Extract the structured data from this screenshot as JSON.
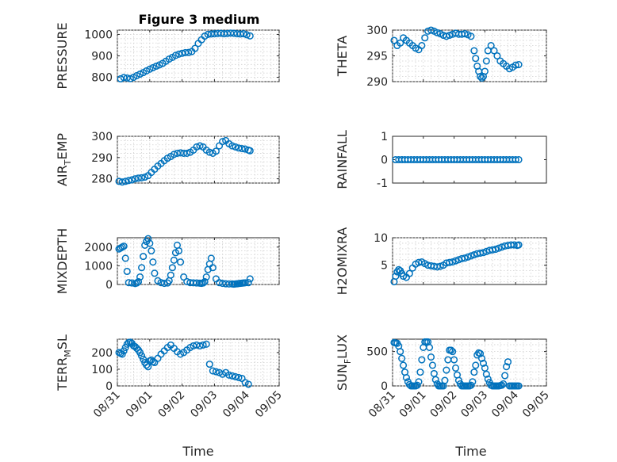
{
  "figure_title": "Figure 3 medium",
  "marker_color": "#0072BD",
  "chart_data": [
    {
      "type": "scatter",
      "ylabel": "PRESSURE",
      "ylabel_sub": "",
      "ylim": [
        780,
        1020
      ],
      "yticks": [
        800,
        900,
        1000
      ],
      "grid": true,
      "show_xticklabels": false,
      "series": [
        {
          "x": [
            0.1,
            0.2,
            0.3,
            0.4,
            0.5,
            0.6,
            0.7,
            0.8,
            0.9,
            1.0,
            1.1,
            1.2,
            1.3,
            1.4,
            1.5,
            1.6,
            1.7,
            1.8,
            1.9,
            2.0,
            2.1,
            2.2,
            2.3,
            2.4,
            2.5,
            2.6,
            2.7,
            2.8,
            2.9,
            3.0,
            3.1,
            3.2,
            3.3,
            3.4,
            3.5,
            3.6,
            3.7,
            3.8,
            3.9,
            4.0,
            4.1
          ],
          "y": [
            793,
            799,
            797,
            794,
            800,
            808,
            815,
            822,
            830,
            838,
            845,
            852,
            858,
            865,
            875,
            885,
            893,
            902,
            908,
            912,
            915,
            916,
            920,
            935,
            958,
            975,
            992,
            1000,
            1002,
            1003,
            1004,
            1005,
            1003,
            1004,
            1006,
            1005,
            1003,
            1002,
            1003,
            998,
            993
          ]
        }
      ]
    },
    {
      "type": "scatter",
      "ylabel": "THETA",
      "ylabel_sub": "",
      "ylim": [
        290,
        300
      ],
      "yticks": [
        290,
        295,
        300
      ],
      "grid": true,
      "show_xticklabels": false,
      "series": [
        {
          "x": [
            0.05,
            0.15,
            0.25,
            0.35,
            0.45,
            0.55,
            0.65,
            0.75,
            0.85,
            0.95,
            1.05,
            1.15,
            1.25,
            1.35,
            1.45,
            1.55,
            1.65,
            1.75,
            1.85,
            1.95,
            2.05,
            2.15,
            2.25,
            2.35,
            2.45,
            2.55,
            2.65,
            2.7,
            2.75,
            2.8,
            2.85,
            2.9,
            2.95,
            3.0,
            3.05,
            3.1,
            3.2,
            3.3,
            3.4,
            3.5,
            3.6,
            3.7,
            3.8,
            3.9,
            4.0,
            4.1
          ],
          "y": [
            298,
            297,
            297.5,
            298.5,
            298,
            297.5,
            297,
            296.5,
            296.2,
            297,
            298.5,
            299.8,
            300,
            299.8,
            299.5,
            299.3,
            299,
            298.8,
            299,
            299.2,
            299.4,
            299.2,
            299.2,
            299.3,
            299.1,
            298.8,
            296,
            294.5,
            293,
            292,
            291,
            290.7,
            291,
            292,
            294,
            296,
            297,
            296,
            295,
            294,
            293.5,
            293,
            292.5,
            292.8,
            293.2,
            293.3
          ]
        }
      ]
    },
    {
      "type": "scatter",
      "ylabel": "AIR",
      "ylabel_sub": "T",
      "ylabel_suffix": "EMP",
      "ylim": [
        278,
        300
      ],
      "yticks": [
        280,
        290,
        300
      ],
      "grid": true,
      "show_xticklabels": false,
      "series": [
        {
          "x": [
            0.05,
            0.15,
            0.25,
            0.35,
            0.45,
            0.55,
            0.65,
            0.75,
            0.85,
            0.95,
            1.05,
            1.15,
            1.25,
            1.35,
            1.45,
            1.55,
            1.65,
            1.75,
            1.85,
            1.95,
            2.05,
            2.15,
            2.25,
            2.35,
            2.45,
            2.55,
            2.65,
            2.75,
            2.85,
            2.95,
            3.05,
            3.15,
            3.25,
            3.35,
            3.45,
            3.55,
            3.65,
            3.75,
            3.85,
            3.95,
            4.05,
            4.1
          ],
          "y": [
            278.8,
            278.5,
            278.8,
            279.2,
            279.5,
            280,
            280.3,
            280.5,
            280.8,
            281.5,
            283,
            284.5,
            286,
            287.2,
            288.5,
            289.7,
            290.5,
            291.5,
            292,
            292.2,
            292,
            292,
            292.5,
            293.5,
            295,
            295.5,
            295,
            293.5,
            292.5,
            292,
            293,
            295.5,
            297.5,
            298,
            296.5,
            295.5,
            295,
            294.5,
            294.2,
            294,
            293.5,
            293.2
          ]
        }
      ]
    },
    {
      "type": "scatter",
      "ylabel": "RAINFALL",
      "ylabel_sub": "",
      "ylim": [
        -1,
        1
      ],
      "yticks": [
        -1,
        0,
        1
      ],
      "grid": false,
      "show_xticklabels": false,
      "series": [
        {
          "x": [
            0.1,
            0.2,
            0.3,
            0.4,
            0.5,
            0.6,
            0.7,
            0.8,
            0.9,
            1.0,
            1.1,
            1.2,
            1.3,
            1.4,
            1.5,
            1.6,
            1.7,
            1.8,
            1.9,
            2.0,
            2.1,
            2.2,
            2.3,
            2.4,
            2.5,
            2.6,
            2.7,
            2.8,
            2.9,
            3.0,
            3.1,
            3.2,
            3.3,
            3.4,
            3.5,
            3.6,
            3.7,
            3.8,
            3.9,
            4.0,
            4.1
          ],
          "y": [
            0,
            0,
            0,
            0,
            0,
            0,
            0,
            0,
            0,
            0,
            0,
            0,
            0,
            0,
            0,
            0,
            0,
            0,
            0,
            0,
            0,
            0,
            0,
            0,
            0,
            0,
            0,
            0,
            0,
            0,
            0,
            0,
            0,
            0,
            0,
            0,
            0,
            0,
            0,
            0,
            0
          ]
        }
      ]
    },
    {
      "type": "scatter",
      "ylabel": "MIXDEPTH",
      "ylabel_sub": "",
      "ylim": [
        0,
        2500
      ],
      "yticks": [
        0,
        1000,
        2000
      ],
      "grid": true,
      "show_xticklabels": false,
      "series": [
        {
          "x": [
            0.05,
            0.1,
            0.15,
            0.2,
            0.25,
            0.3,
            0.35,
            0.45,
            0.55,
            0.6,
            0.65,
            0.7,
            0.75,
            0.8,
            0.85,
            0.9,
            0.95,
            1.0,
            1.05,
            1.1,
            1.15,
            1.25,
            1.35,
            1.45,
            1.55,
            1.6,
            1.65,
            1.7,
            1.75,
            1.8,
            1.85,
            1.9,
            1.95,
            2.05,
            2.15,
            2.25,
            2.35,
            2.45,
            2.55,
            2.6,
            2.65,
            2.7,
            2.75,
            2.8,
            2.85,
            2.9,
            2.95,
            3.05,
            3.15,
            3.25,
            3.35,
            3.45,
            3.55,
            3.6,
            3.65,
            3.7,
            3.75,
            3.8,
            3.85,
            3.9,
            3.95,
            4.05,
            4.1
          ],
          "y": [
            1900,
            1950,
            2000,
            2050,
            1400,
            700,
            100,
            80,
            50,
            80,
            150,
            400,
            900,
            1500,
            2100,
            2300,
            2450,
            2200,
            1800,
            1200,
            600,
            200,
            100,
            60,
            80,
            200,
            500,
            900,
            1300,
            1700,
            2100,
            1800,
            1200,
            400,
            150,
            100,
            90,
            80,
            70,
            60,
            80,
            150,
            400,
            800,
            1100,
            1400,
            900,
            300,
            100,
            60,
            40,
            30,
            30,
            20,
            30,
            40,
            50,
            60,
            70,
            80,
            90,
            100,
            300
          ]
        }
      ]
    },
    {
      "type": "scatter",
      "ylabel": "H2OMIXRA",
      "ylabel_sub": "",
      "ylim": [
        1.5,
        10
      ],
      "yticks": [
        5,
        10
      ],
      "grid": true,
      "show_xticklabels": false,
      "series": [
        {
          "x": [
            0.05,
            0.1,
            0.15,
            0.2,
            0.25,
            0.3,
            0.35,
            0.45,
            0.55,
            0.65,
            0.75,
            0.85,
            0.95,
            1.05,
            1.15,
            1.25,
            1.35,
            1.45,
            1.55,
            1.65,
            1.75,
            1.85,
            1.95,
            2.05,
            2.15,
            2.25,
            2.35,
            2.45,
            2.55,
            2.65,
            2.75,
            2.85,
            2.95,
            3.05,
            3.15,
            3.25,
            3.35,
            3.45,
            3.55,
            3.65,
            3.75,
            3.85,
            3.95,
            4.05,
            4.1
          ],
          "y": [
            2,
            3,
            3.8,
            4.2,
            4,
            3.5,
            3,
            2.8,
            3.5,
            4.5,
            5.2,
            5.5,
            5.6,
            5.3,
            5,
            4.9,
            4.8,
            4.7,
            4.8,
            5,
            5.4,
            5.5,
            5.6,
            5.8,
            6,
            6.2,
            6.3,
            6.5,
            6.7,
            6.9,
            7.1,
            7.2,
            7.3,
            7.5,
            7.7,
            7.8,
            7.9,
            8.1,
            8.3,
            8.5,
            8.6,
            8.7,
            8.7,
            8.6,
            8.7
          ]
        }
      ]
    },
    {
      "type": "scatter",
      "ylabel": "TERR",
      "ylabel_sub": "M",
      "ylabel_suffix": "SL",
      "ylim": [
        0,
        280
      ],
      "yticks": [
        0,
        100,
        200
      ],
      "grid": true,
      "show_xticklabels": true,
      "series": [
        {
          "x": [
            0.05,
            0.1,
            0.15,
            0.2,
            0.25,
            0.3,
            0.35,
            0.4,
            0.45,
            0.5,
            0.55,
            0.6,
            0.65,
            0.7,
            0.75,
            0.8,
            0.85,
            0.9,
            0.95,
            1.0,
            1.05,
            1.1,
            1.15,
            1.25,
            1.35,
            1.45,
            1.55,
            1.65,
            1.75,
            1.85,
            1.95,
            2.05,
            2.15,
            2.25,
            2.35,
            2.45,
            2.55,
            2.65,
            2.75,
            2.85,
            2.95,
            3.05,
            3.15,
            3.25,
            3.35,
            3.45,
            3.55,
            3.65,
            3.75,
            3.85,
            3.95,
            4.05
          ],
          "y": [
            200,
            195,
            190,
            210,
            230,
            250,
            260,
            262,
            255,
            240,
            235,
            225,
            215,
            200,
            180,
            160,
            140,
            125,
            115,
            150,
            155,
            145,
            140,
            165,
            190,
            210,
            230,
            245,
            225,
            205,
            190,
            200,
            215,
            230,
            240,
            245,
            240,
            245,
            250,
            130,
            90,
            85,
            80,
            70,
            80,
            65,
            60,
            55,
            50,
            45,
            20,
            10
          ]
        }
      ]
    },
    {
      "type": "scatter",
      "ylabel": "SUN",
      "ylabel_sub": "F",
      "ylabel_suffix": "LUX",
      "ylim": [
        0,
        680
      ],
      "yticks": [
        0,
        500
      ],
      "grid": true,
      "show_xticklabels": true,
      "series": [
        {
          "x": [
            0.05,
            0.1,
            0.15,
            0.2,
            0.25,
            0.3,
            0.35,
            0.4,
            0.45,
            0.5,
            0.55,
            0.6,
            0.65,
            0.7,
            0.75,
            0.8,
            0.85,
            0.9,
            0.95,
            1.0,
            1.05,
            1.1,
            1.15,
            1.2,
            1.25,
            1.3,
            1.35,
            1.4,
            1.45,
            1.5,
            1.55,
            1.6,
            1.65,
            1.7,
            1.75,
            1.8,
            1.85,
            1.9,
            1.95,
            2.0,
            2.05,
            2.1,
            2.15,
            2.2,
            2.25,
            2.3,
            2.35,
            2.4,
            2.45,
            2.5,
            2.55,
            2.6,
            2.65,
            2.7,
            2.75,
            2.8,
            2.85,
            2.9,
            2.95,
            3.0,
            3.05,
            3.1,
            3.15,
            3.2,
            3.25,
            3.3,
            3.35,
            3.4,
            3.45,
            3.5,
            3.55,
            3.6,
            3.65,
            3.7,
            3.75,
            3.8,
            3.85,
            3.9,
            3.95,
            4.0,
            4.05,
            4.1
          ],
          "y": [
            630,
            625,
            620,
            580,
            500,
            400,
            300,
            200,
            120,
            60,
            20,
            0,
            0,
            0,
            0,
            10,
            60,
            200,
            380,
            560,
            640,
            640,
            640,
            560,
            420,
            300,
            180,
            90,
            30,
            0,
            0,
            0,
            0,
            80,
            230,
            380,
            520,
            520,
            500,
            380,
            260,
            160,
            80,
            30,
            0,
            0,
            0,
            0,
            0,
            0,
            10,
            60,
            200,
            300,
            450,
            480,
            470,
            400,
            330,
            260,
            170,
            100,
            50,
            10,
            0,
            0,
            0,
            0,
            0,
            5,
            10,
            30,
            150,
            280,
            350,
            0,
            0,
            0,
            0,
            0,
            0,
            0
          ]
        }
      ]
    }
  ],
  "x_axis": {
    "ticks": [
      0,
      1,
      2,
      3,
      4,
      5
    ],
    "tick_labels": [
      "08/31",
      "09/01",
      "09/02",
      "09/03",
      "09/04",
      "09/05"
    ],
    "label": "Time"
  }
}
